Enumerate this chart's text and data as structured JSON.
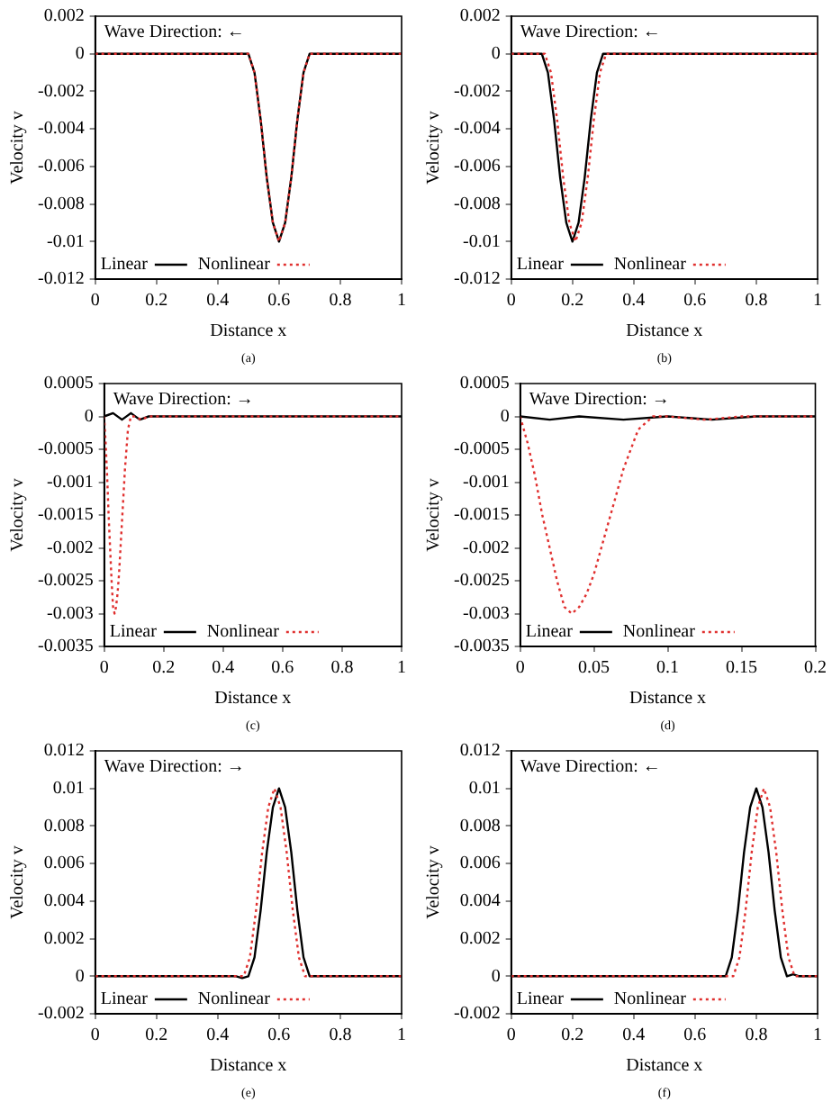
{
  "chart_data": [
    {
      "type": "line",
      "xlabel": "Distance x",
      "ylabel": "Velocity v",
      "annotations": [
        "Wave Direction: ←",
        "(a)"
      ],
      "xlim": [
        0,
        1
      ],
      "xticks": [
        0,
        0.2,
        0.4,
        0.6,
        0.8,
        1
      ],
      "ylim": [
        -0.012,
        0.002
      ],
      "yticks": [
        -0.012,
        -0.01,
        -0.008,
        -0.006,
        -0.004,
        -0.002,
        0,
        0.002
      ],
      "legend": "bottom left",
      "marker": "none",
      "series": [
        {
          "name": "Linear",
          "color": "#000000",
          "line_style": "solid",
          "x": [
            0,
            0.45,
            0.5,
            0.52,
            0.54,
            0.56,
            0.58,
            0.6,
            0.62,
            0.64,
            0.66,
            0.68,
            0.7,
            0.75,
            1
          ],
          "values": [
            0,
            0,
            0,
            -0.001,
            -0.0035,
            -0.0066,
            -0.009,
            -0.01,
            -0.009,
            -0.0066,
            -0.0035,
            -0.001,
            0,
            0,
            0
          ]
        },
        {
          "name": "Nonlinear",
          "color": "#e0302f",
          "line_style": "dotted",
          "x": [
            0,
            0.45,
            0.5,
            0.52,
            0.54,
            0.56,
            0.58,
            0.6,
            0.62,
            0.64,
            0.66,
            0.68,
            0.7,
            0.75,
            1
          ],
          "values": [
            0,
            0,
            0,
            -0.001,
            -0.0035,
            -0.0066,
            -0.009,
            -0.01,
            -0.009,
            -0.0066,
            -0.0035,
            -0.001,
            0,
            0,
            0
          ]
        }
      ]
    },
    {
      "type": "line",
      "xlabel": "Distance x",
      "ylabel": "Velocity v",
      "annotations": [
        "Wave Direction: ←",
        "(b)"
      ],
      "xlim": [
        0,
        1
      ],
      "xticks": [
        0,
        0.2,
        0.4,
        0.6,
        0.8,
        1
      ],
      "ylim": [
        -0.012,
        0.002
      ],
      "yticks": [
        -0.012,
        -0.01,
        -0.008,
        -0.006,
        -0.004,
        -0.002,
        0,
        0.002
      ],
      "legend": "bottom left",
      "marker": "none",
      "series": [
        {
          "name": "Linear",
          "color": "#000000",
          "line_style": "solid",
          "x": [
            0,
            0.08,
            0.1,
            0.12,
            0.14,
            0.16,
            0.18,
            0.2,
            0.22,
            0.24,
            0.26,
            0.28,
            0.3,
            0.35,
            1
          ],
          "values": [
            0,
            0,
            0,
            -0.001,
            -0.0035,
            -0.0066,
            -0.009,
            -0.01,
            -0.009,
            -0.0066,
            -0.0035,
            -0.001,
            0,
            0,
            0
          ]
        },
        {
          "name": "Nonlinear",
          "color": "#e0302f",
          "line_style": "dotted",
          "x": [
            0,
            0.09,
            0.11,
            0.13,
            0.15,
            0.17,
            0.19,
            0.21,
            0.23,
            0.25,
            0.27,
            0.29,
            0.31,
            0.35,
            1
          ],
          "values": [
            0,
            0,
            0,
            -0.001,
            -0.0035,
            -0.0066,
            -0.009,
            -0.01,
            -0.009,
            -0.0066,
            -0.0035,
            -0.001,
            0,
            0,
            0
          ]
        }
      ]
    },
    {
      "type": "line",
      "xlabel": "Distance x",
      "ylabel": "Velocity v",
      "annotations": [
        "Wave Direction: →",
        "(c)"
      ],
      "xlim": [
        0,
        1
      ],
      "xticks": [
        0,
        0.2,
        0.4,
        0.6,
        0.8,
        1
      ],
      "ylim": [
        -0.0035,
        0.0005
      ],
      "yticks": [
        -0.0035,
        -0.003,
        -0.0025,
        -0.002,
        -0.0015,
        -0.001,
        -0.0005,
        0,
        0.0005
      ],
      "legend": "bottom left",
      "marker": "none",
      "series": [
        {
          "name": "Linear",
          "color": "#000000",
          "line_style": "solid",
          "x": [
            0,
            0.03,
            0.06,
            0.09,
            0.12,
            0.15,
            0.2,
            1
          ],
          "values": [
            0,
            5e-05,
            -5e-05,
            5e-05,
            -5e-05,
            0,
            0,
            0
          ]
        },
        {
          "name": "Nonlinear",
          "color": "#e0302f",
          "line_style": "dotted",
          "x": [
            0,
            0.005,
            0.01,
            0.015,
            0.02,
            0.025,
            0.03,
            0.035,
            0.04,
            0.045,
            0.05,
            0.055,
            0.06,
            0.065,
            0.07,
            0.075,
            0.08,
            0.085,
            0.09,
            0.1,
            0.125,
            0.15,
            0.175,
            0.2,
            1
          ],
          "values": [
            0,
            -0.0004,
            -0.0009,
            -0.0015,
            -0.002,
            -0.0025,
            -0.0029,
            -0.003,
            -0.0029,
            -0.0027,
            -0.0024,
            -0.002,
            -0.0016,
            -0.0012,
            -0.0008,
            -0.0005,
            -0.0002,
            -0.0001,
            0,
            0,
            -5e-05,
            0,
            0,
            0,
            0
          ]
        }
      ]
    },
    {
      "type": "line",
      "xlabel": "Distance x",
      "ylabel": "Velocity v",
      "annotations": [
        "Wave Direction: →",
        "(d)"
      ],
      "xlim": [
        0,
        0.2
      ],
      "xticks": [
        0,
        0.05,
        0.1,
        0.15,
        0.2
      ],
      "ylim": [
        -0.0035,
        0.0005
      ],
      "yticks": [
        -0.0035,
        -0.003,
        -0.0025,
        -0.002,
        -0.0015,
        -0.001,
        -0.0005,
        0,
        0.0005
      ],
      "legend": "bottom left",
      "marker": "none",
      "series": [
        {
          "name": "Linear",
          "color": "#000000",
          "line_style": "solid",
          "x": [
            0,
            0.02,
            0.04,
            0.07,
            0.1,
            0.13,
            0.16,
            0.2
          ],
          "values": [
            0,
            -5e-05,
            0,
            -5e-05,
            0,
            -5e-05,
            0,
            0
          ]
        },
        {
          "name": "Nonlinear",
          "color": "#e0302f",
          "line_style": "dotted",
          "x": [
            0,
            0.005,
            0.01,
            0.015,
            0.02,
            0.025,
            0.03,
            0.035,
            0.04,
            0.045,
            0.05,
            0.055,
            0.06,
            0.065,
            0.07,
            0.075,
            0.08,
            0.085,
            0.09,
            0.1,
            0.125,
            0.15,
            0.175,
            0.2
          ],
          "values": [
            0,
            -0.0004,
            -0.0009,
            -0.0015,
            -0.002,
            -0.0025,
            -0.0029,
            -0.003,
            -0.0029,
            -0.0027,
            -0.0024,
            -0.002,
            -0.0016,
            -0.0012,
            -0.0008,
            -0.0005,
            -0.0002,
            -0.0001,
            0,
            0,
            -5e-05,
            0,
            0,
            0
          ]
        }
      ]
    },
    {
      "type": "line",
      "xlabel": "Distance x",
      "ylabel": "Velocity v",
      "annotations": [
        "Wave Direction: →",
        "(e)"
      ],
      "xlim": [
        0,
        1
      ],
      "xticks": [
        0,
        0.2,
        0.4,
        0.6,
        0.8,
        1
      ],
      "ylim": [
        -0.002,
        0.012
      ],
      "yticks": [
        -0.002,
        0,
        0.002,
        0.004,
        0.006,
        0.008,
        0.01,
        0.012
      ],
      "legend": "bottom left",
      "marker": "none",
      "series": [
        {
          "name": "Linear",
          "color": "#000000",
          "line_style": "solid",
          "x": [
            0,
            0.4,
            0.46,
            0.48,
            0.5,
            0.52,
            0.54,
            0.56,
            0.58,
            0.6,
            0.62,
            0.64,
            0.66,
            0.68,
            0.7,
            0.75,
            1
          ],
          "values": [
            0,
            0,
            0,
            -0.0001,
            0,
            0.001,
            0.0035,
            0.0066,
            0.009,
            0.01,
            0.009,
            0.0066,
            0.0035,
            0.001,
            0,
            0,
            0
          ]
        },
        {
          "name": "Nonlinear",
          "color": "#e0302f",
          "line_style": "dotted",
          "x": [
            0,
            0.4,
            0.485,
            0.505,
            0.525,
            0.545,
            0.565,
            0.585,
            0.605,
            0.625,
            0.645,
            0.665,
            0.685,
            0.72,
            1
          ],
          "values": [
            0,
            0,
            0,
            0.001,
            0.0035,
            0.0066,
            0.009,
            0.01,
            0.009,
            0.0066,
            0.0035,
            0.001,
            0,
            0,
            0
          ]
        }
      ]
    },
    {
      "type": "line",
      "xlabel": "Distance x",
      "ylabel": "Velocity v",
      "annotations": [
        "Wave Direction: ←",
        "(f)"
      ],
      "xlim": [
        0,
        1
      ],
      "xticks": [
        0,
        0.2,
        0.4,
        0.6,
        0.8,
        1
      ],
      "ylim": [
        -0.002,
        0.012
      ],
      "yticks": [
        -0.002,
        0,
        0.002,
        0.004,
        0.006,
        0.008,
        0.01,
        0.012
      ],
      "legend": "bottom left",
      "marker": "none",
      "series": [
        {
          "name": "Linear",
          "color": "#000000",
          "line_style": "solid",
          "x": [
            0,
            0.65,
            0.7,
            0.72,
            0.74,
            0.76,
            0.78,
            0.8,
            0.82,
            0.84,
            0.86,
            0.88,
            0.9,
            0.92,
            0.94,
            1
          ],
          "values": [
            0,
            0,
            0,
            0.001,
            0.0035,
            0.0066,
            0.009,
            0.01,
            0.009,
            0.0066,
            0.0035,
            0.001,
            0,
            0.0001,
            0,
            0
          ]
        },
        {
          "name": "Nonlinear",
          "color": "#e0302f",
          "line_style": "dotted",
          "x": [
            0,
            0.65,
            0.725,
            0.745,
            0.765,
            0.785,
            0.805,
            0.825,
            0.845,
            0.865,
            0.885,
            0.905,
            0.925,
            0.95,
            1
          ],
          "values": [
            0,
            0,
            0,
            0.001,
            0.0035,
            0.0066,
            0.009,
            0.01,
            0.009,
            0.0066,
            0.0035,
            0.001,
            0,
            0,
            0
          ]
        }
      ]
    }
  ]
}
